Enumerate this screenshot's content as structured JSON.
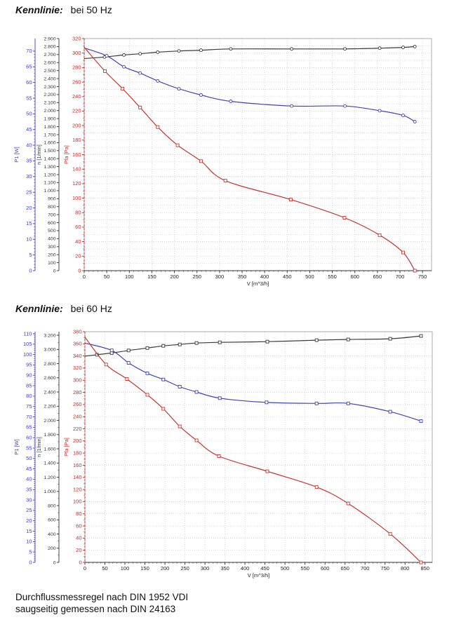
{
  "titles": {
    "section1": {
      "label": "Kennlinie:",
      "value": "bei 50 Hz"
    },
    "section2": {
      "label": "Kennlinie:",
      "value": "bei 60 Hz"
    }
  },
  "footer": {
    "line1": "Durchflussmessregel nach DIN 1952 VDI",
    "line2": "saugseitig gemessen nach DIN 24163"
  },
  "colors": {
    "p1_axis": "#3d3db8",
    "n_axis": "#333333",
    "pfa_axis": "#c02828",
    "grid": "#c9c9c9",
    "plot_border": "#979797"
  },
  "chart_data": [
    {
      "type": "line",
      "title": "Kennlinie bei 50 Hz",
      "xlabel": "V [m^3/h]",
      "grid": "on",
      "x": {
        "max": 770,
        "label_max": 750,
        "step": 50,
        "minor": 10
      },
      "grid_step": 10,
      "axes": [
        {
          "id": "p1",
          "title": "P1 [W]",
          "color": "#3d3db8",
          "max": 74,
          "label_max": 70,
          "step": 5,
          "minor": 1,
          "thousands": false,
          "dashed": false
        },
        {
          "id": "n",
          "title": "n [1/min]",
          "color": "#333333",
          "max": 2900,
          "label_max": 2900,
          "step": 100,
          "minor": 0,
          "thousands": true,
          "dashed": false
        },
        {
          "id": "pfa",
          "title": "Pfa [Pa]",
          "color": "#c02828",
          "max": 320,
          "label_max": 320,
          "step": 20,
          "minor": 10,
          "thousands": false,
          "dashed": true
        }
      ],
      "series": [
        {
          "name": "n [1/min]",
          "axis": "n",
          "color": "#3a3a3a",
          "marker": "circle",
          "points": [
            [
              0,
              2650
            ],
            [
              45,
              2670
            ],
            [
              88,
              2695
            ],
            [
              124,
              2710
            ],
            [
              163,
              2730
            ],
            [
              210,
              2745
            ],
            [
              259,
              2755
            ],
            [
              325,
              2770
            ],
            [
              460,
              2770
            ],
            [
              578,
              2770
            ],
            [
              655,
              2780
            ],
            [
              707,
              2790
            ],
            [
              733,
              2800
            ]
          ]
        },
        {
          "name": "P1 [W]",
          "axis": "p1",
          "color": "#4343b0",
          "marker": "circle",
          "points": [
            [
              0,
              71
            ],
            [
              50,
              68.5
            ],
            [
              88,
              65
            ],
            [
              124,
              63
            ],
            [
              163,
              60.5
            ],
            [
              210,
              58
            ],
            [
              259,
              56
            ],
            [
              325,
              54
            ],
            [
              460,
              52.5
            ],
            [
              578,
              52.5
            ],
            [
              655,
              51
            ],
            [
              707,
              49.5
            ],
            [
              733,
              47.5
            ]
          ]
        },
        {
          "name": "Pfa [Pa]",
          "axis": "pfa",
          "color": "#c23530",
          "marker": "square",
          "points": [
            [
              0,
              308
            ],
            [
              46,
              275
            ],
            [
              85,
              251
            ],
            [
              124,
              225
            ],
            [
              163,
              198
            ],
            [
              207,
              173
            ],
            [
              259,
              151
            ],
            [
              313,
              124
            ],
            [
              458,
              98
            ],
            [
              577,
              73
            ],
            [
              655,
              49
            ],
            [
              707,
              25
            ],
            [
              733,
              0
            ]
          ]
        }
      ]
    },
    {
      "type": "line",
      "title": "Kennlinie bei 60 Hz",
      "xlabel": "V [m^3/h]",
      "grid": "on",
      "x": {
        "max": 868,
        "label_max": 850,
        "step": 50,
        "minor": 10
      },
      "grid_step": 20,
      "axes": [
        {
          "id": "p1",
          "title": "P1 [W]",
          "color": "#3d3db8",
          "max": 111,
          "label_max": 110,
          "step": 5,
          "minor": 1,
          "thousands": false,
          "dashed": false
        },
        {
          "id": "n",
          "title": "n [1/min]",
          "color": "#333333",
          "max": 3250,
          "label_max": 3200,
          "step": 200,
          "minor": 100,
          "thousands": true,
          "dashed": false
        },
        {
          "id": "pfa",
          "title": "Pfa [Pa]",
          "color": "#c02828",
          "max": 380,
          "label_max": 380,
          "step": 20,
          "minor": 10,
          "thousands": false,
          "dashed": true
        }
      ],
      "series": [
        {
          "name": "n [1/min]",
          "axis": "n",
          "color": "#3a3a3a",
          "marker": "square",
          "points": [
            [
              0,
              2905
            ],
            [
              30,
              2925
            ],
            [
              67,
              2950
            ],
            [
              109,
              2985
            ],
            [
              156,
              3020
            ],
            [
              196,
              3050
            ],
            [
              237,
              3070
            ],
            [
              279,
              3090
            ],
            [
              337,
              3100
            ],
            [
              456,
              3110
            ],
            [
              579,
              3130
            ],
            [
              658,
              3140
            ],
            [
              763,
              3150
            ],
            [
              840,
              3190
            ]
          ]
        },
        {
          "name": "P1 [W]",
          "axis": "p1",
          "color": "#4343b0",
          "marker": "square",
          "points": [
            [
              0,
              105.5
            ],
            [
              67,
              102
            ],
            [
              109,
              96
            ],
            [
              156,
              91
            ],
            [
              196,
              88
            ],
            [
              237,
              84.5
            ],
            [
              279,
              82
            ],
            [
              337,
              79
            ],
            [
              454,
              77
            ],
            [
              579,
              76.5
            ],
            [
              658,
              76.5
            ],
            [
              763,
              72.5
            ],
            [
              840,
              68
            ]
          ]
        },
        {
          "name": "Pfa [Pa]",
          "axis": "pfa",
          "color": "#c23530",
          "marker": "square",
          "points": [
            [
              0,
              371
            ],
            [
              53,
              326
            ],
            [
              105,
              302
            ],
            [
              156,
              276
            ],
            [
              196,
              253
            ],
            [
              237,
              224
            ],
            [
              279,
              201
            ],
            [
              335,
              175
            ],
            [
              456,
              150
            ],
            [
              579,
              124
            ],
            [
              658,
              97
            ],
            [
              763,
              47
            ],
            [
              840,
              0
            ]
          ]
        }
      ]
    }
  ]
}
